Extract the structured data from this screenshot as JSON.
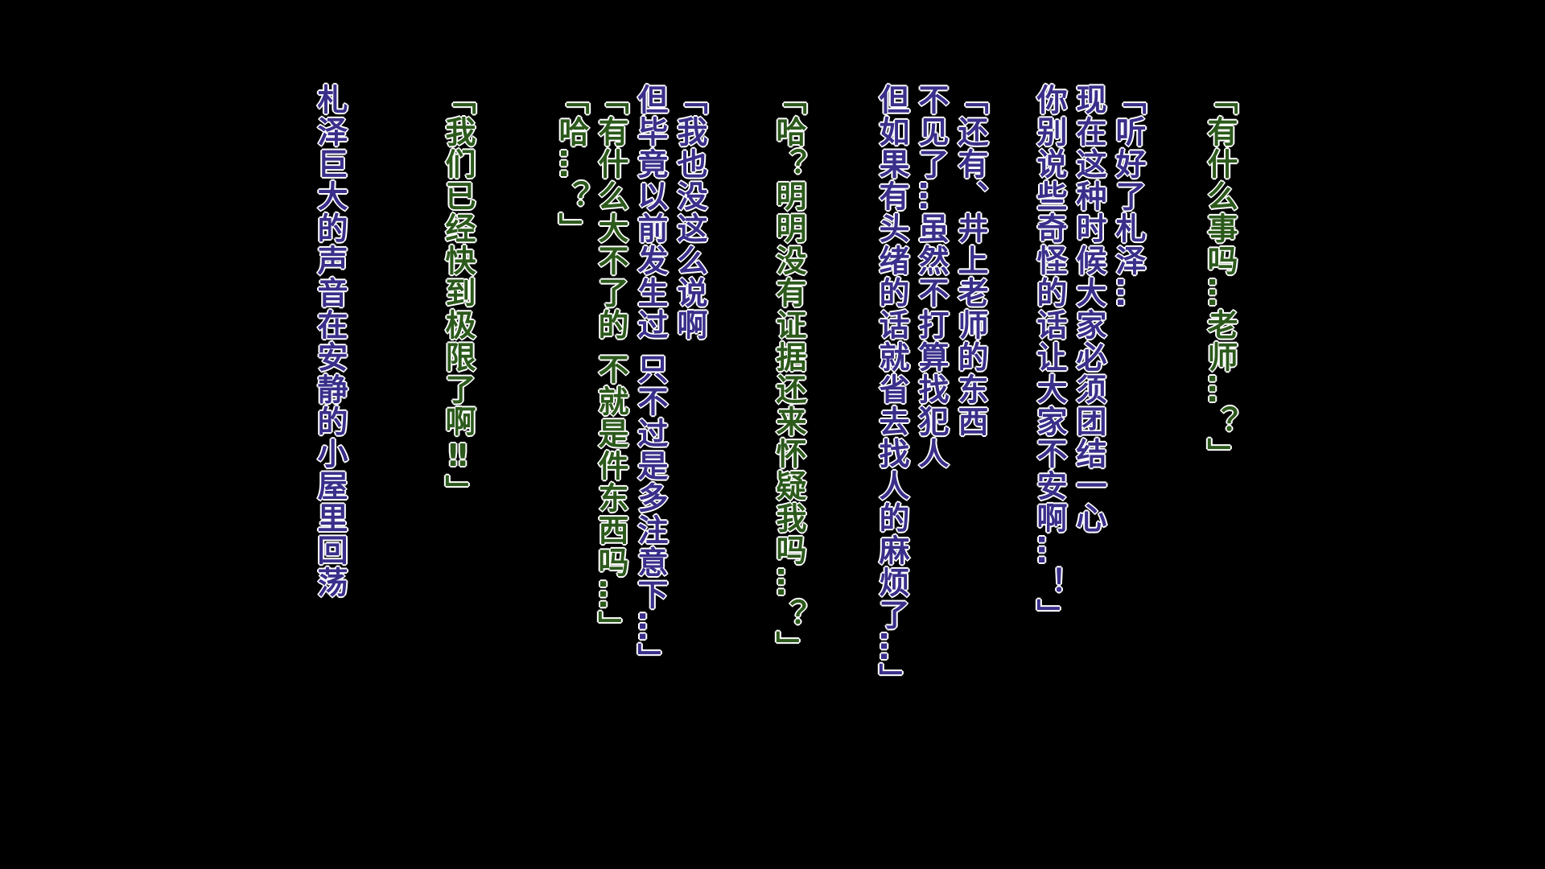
{
  "dialogue": [
    "「有什么事吗…老师…？」",
    "「听好了札泽…",
    "现在这种时候大家必须团结一心",
    "你别说些奇怪的话让大家不安啊…！」",
    "「还有、井上老师的东西",
    "不见了…虽然不打算找犯人",
    "但如果有头绪的话就省去找人的麻烦了…」",
    "「哈？明明没有证据还来怀疑我吗…？」",
    "「我也没这么说啊",
    "但毕竟以前发生过 只不过是多注意下…」",
    "「有什么大不了的 不就是件东西吗…」",
    "「哈…？」",
    "「我们已经快到极限了啊‼」",
    "札泽巨大的声音在安静的小屋里回荡"
  ]
}
